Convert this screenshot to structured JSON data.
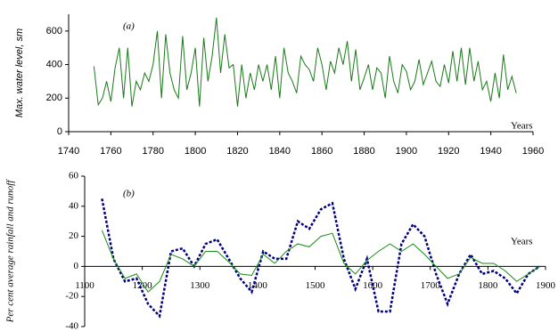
{
  "chart_data": [
    {
      "type": "line",
      "annotation": "(a)",
      "xlabel": "Years",
      "ylabel": "Max. water level, sm",
      "xlim": [
        1740,
        1960
      ],
      "ylim": [
        0,
        700
      ],
      "xticks": [
        1740,
        1760,
        1780,
        1800,
        1820,
        1840,
        1860,
        1880,
        1900,
        1920,
        1940,
        1960
      ],
      "yticks": [
        0,
        200,
        400,
        600
      ],
      "x": [
        1752,
        1754,
        1756,
        1758,
        1760,
        1762,
        1764,
        1766,
        1768,
        1770,
        1772,
        1774,
        1776,
        1778,
        1780,
        1782,
        1784,
        1786,
        1788,
        1790,
        1792,
        1794,
        1796,
        1798,
        1800,
        1802,
        1804,
        1806,
        1808,
        1810,
        1812,
        1814,
        1816,
        1818,
        1820,
        1822,
        1824,
        1826,
        1828,
        1830,
        1832,
        1834,
        1836,
        1838,
        1840,
        1842,
        1844,
        1846,
        1848,
        1850,
        1852,
        1854,
        1856,
        1858,
        1860,
        1862,
        1864,
        1866,
        1868,
        1870,
        1872,
        1874,
        1876,
        1878,
        1880,
        1882,
        1884,
        1886,
        1888,
        1890,
        1892,
        1894,
        1896,
        1898,
        1900,
        1902,
        1904,
        1906,
        1908,
        1910,
        1912,
        1914,
        1916,
        1918,
        1920,
        1922,
        1924,
        1926,
        1928,
        1930,
        1932,
        1934,
        1936,
        1938,
        1940,
        1942,
        1944,
        1946,
        1948,
        1950,
        1952
      ],
      "series": [
        {
          "color": "#1a7a1a",
          "linestyle": "solid",
          "values": [
            390,
            160,
            200,
            300,
            180,
            380,
            500,
            200,
            500,
            150,
            300,
            250,
            350,
            300,
            400,
            600,
            200,
            580,
            350,
            250,
            200,
            570,
            250,
            350,
            500,
            150,
            560,
            300,
            450,
            680,
            350,
            580,
            380,
            400,
            150,
            400,
            200,
            350,
            250,
            400,
            300,
            400,
            250,
            450,
            200,
            500,
            350,
            300,
            230,
            450,
            400,
            370,
            300,
            500,
            400,
            250,
            420,
            350,
            500,
            400,
            540,
            300,
            490,
            250,
            320,
            400,
            250,
            380,
            350,
            200,
            450,
            300,
            230,
            400,
            360,
            250,
            300,
            430,
            280,
            350,
            420,
            300,
            270,
            400,
            290,
            480,
            300,
            500,
            280,
            500,
            300,
            420,
            250,
            300,
            180,
            350,
            200,
            460,
            250,
            330,
            230
          ]
        }
      ]
    },
    {
      "type": "line",
      "annotation": "(b)",
      "xlabel": "Years",
      "ylabel": "Per cent average rainfall and runoff",
      "xlim": [
        1100,
        1900
      ],
      "ylim": [
        -40,
        60
      ],
      "xticks": [
        1100,
        1200,
        1300,
        1400,
        1500,
        1600,
        1700,
        1800,
        1900
      ],
      "yticks": [
        -40,
        -20,
        0,
        20,
        40,
        60
      ],
      "x": [
        1130,
        1150,
        1170,
        1190,
        1210,
        1230,
        1250,
        1270,
        1290,
        1310,
        1330,
        1350,
        1370,
        1390,
        1410,
        1430,
        1450,
        1470,
        1490,
        1510,
        1530,
        1550,
        1570,
        1590,
        1610,
        1630,
        1650,
        1670,
        1690,
        1710,
        1730,
        1750,
        1770,
        1790,
        1810,
        1830,
        1850,
        1870,
        1890
      ],
      "series": [
        {
          "color": "#000080",
          "linestyle": "dotted",
          "values": [
            45,
            5,
            -10,
            -8,
            -25,
            -33,
            10,
            12,
            0,
            15,
            18,
            5,
            -8,
            -17,
            10,
            5,
            5,
            30,
            25,
            38,
            42,
            5,
            -15,
            5,
            -30,
            -30,
            15,
            28,
            20,
            -5,
            -25,
            -5,
            8,
            -5,
            -3,
            -8,
            -18,
            -5,
            0
          ]
        },
        {
          "color": "#1a8a1a",
          "linestyle": "solid",
          "values": [
            24,
            5,
            -8,
            -5,
            -17,
            -10,
            8,
            5,
            0,
            10,
            10,
            3,
            -5,
            -6,
            8,
            2,
            10,
            15,
            13,
            20,
            22,
            2,
            -5,
            4,
            10,
            15,
            10,
            15,
            8,
            0,
            -8,
            -5,
            6,
            2,
            2,
            -3,
            -10,
            -5,
            0
          ]
        }
      ]
    }
  ]
}
